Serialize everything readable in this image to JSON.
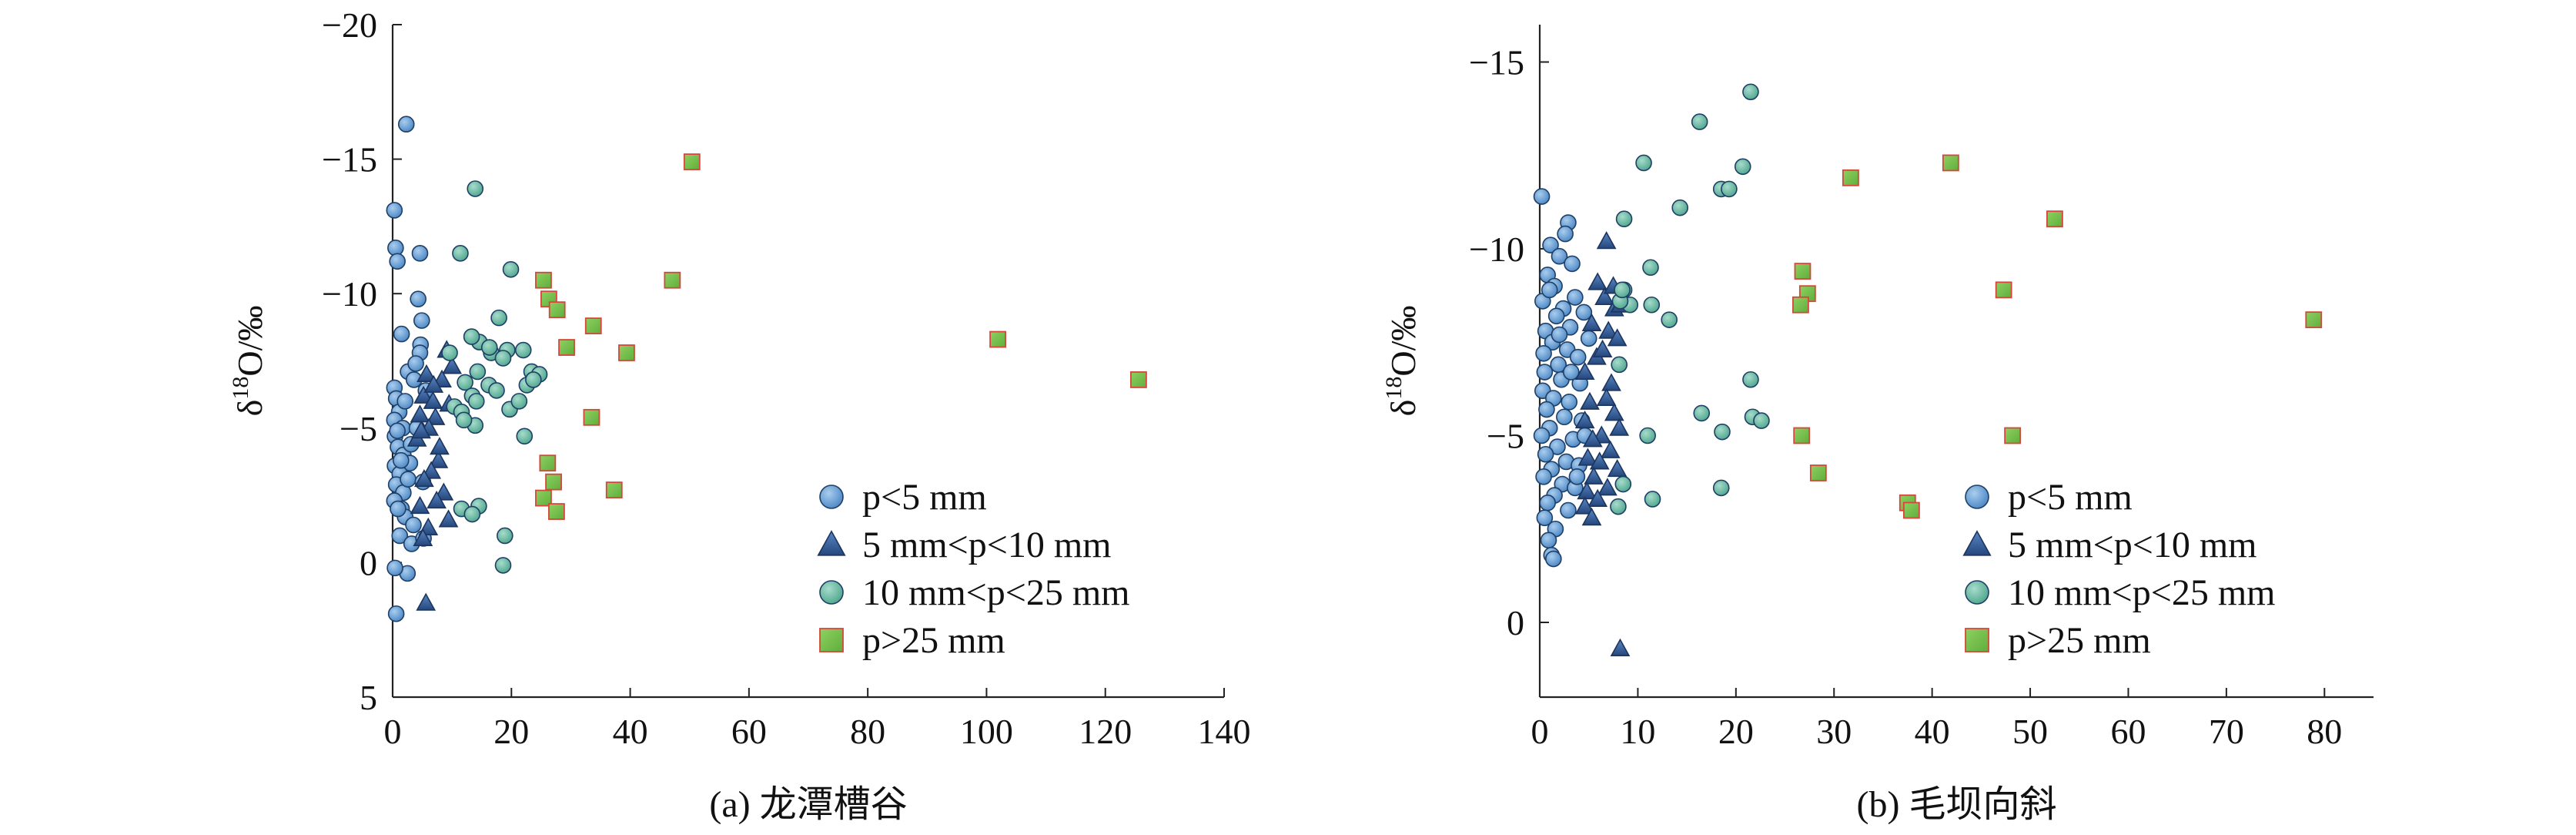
{
  "chart_data": [
    {
      "type": "scatter",
      "caption": "(a) 龙潭槽谷",
      "ylabel_base": "δ",
      "ylabel_sup": "18",
      "ylabel_rest": "O/‰",
      "xlim": [
        0,
        140
      ],
      "ylim": [
        5,
        -20
      ],
      "xticks": [
        0,
        20,
        40,
        60,
        80,
        100,
        120,
        140
      ],
      "yticks": [
        -20,
        -15,
        -10,
        -5,
        0,
        5
      ],
      "xtick_labels": [
        "0",
        "20",
        "40",
        "60",
        "80",
        "100",
        "120",
        "140"
      ],
      "ytick_labels": [
        "−20",
        "−15",
        "−10",
        "−5",
        "0",
        "5"
      ],
      "legend_position": "right",
      "series": [
        {
          "name": "p<5 mm",
          "marker": "circle",
          "color": "#5b9bd5",
          "points": [
            [
              0.3,
              -13.1
            ],
            [
              0.5,
              -11.7
            ],
            [
              0.8,
              -11.2
            ],
            [
              2.3,
              -16.3
            ],
            [
              1.5,
              -8.5
            ],
            [
              4.6,
              -11.5
            ],
            [
              4.3,
              -9.8
            ],
            [
              4.9,
              -9.0
            ],
            [
              4.7,
              -8.1
            ],
            [
              2.6,
              -7.1
            ],
            [
              0.3,
              -6.5
            ],
            [
              0.6,
              -6.1
            ],
            [
              1.1,
              -5.6
            ],
            [
              0.3,
              -5.3
            ],
            [
              1.7,
              -5.0
            ],
            [
              0.4,
              -4.7
            ],
            [
              0.9,
              -4.3
            ],
            [
              1.8,
              -4.0
            ],
            [
              2.9,
              -3.7
            ],
            [
              0.4,
              -3.6
            ],
            [
              1.2,
              -3.3
            ],
            [
              0.6,
              -2.9
            ],
            [
              1.8,
              -2.6
            ],
            [
              0.3,
              -2.3
            ],
            [
              1.5,
              -2.0
            ],
            [
              2.1,
              -1.7
            ],
            [
              3.5,
              -1.4
            ],
            [
              1.2,
              -1.0
            ],
            [
              3.2,
              -0.7
            ],
            [
              5.2,
              -0.9
            ],
            [
              2.5,
              0.4
            ],
            [
              0.4,
              0.2
            ],
            [
              0.6,
              1.9
            ],
            [
              3.1,
              -4.4
            ],
            [
              4.1,
              -5.0
            ],
            [
              5.6,
              -6.4
            ],
            [
              3.6,
              -6.8
            ],
            [
              2.1,
              -6.0
            ],
            [
              4.6,
              -7.8
            ],
            [
              3.9,
              -7.4
            ],
            [
              0.8,
              -4.9
            ],
            [
              1.4,
              -3.8
            ],
            [
              2.6,
              -3.1
            ],
            [
              0.9,
              -2.0
            ],
            [
              5.1,
              -3.0
            ]
          ]
        },
        {
          "name": "5 mm<p<10 mm",
          "marker": "triangle",
          "color": "#2e5a9a",
          "points": [
            [
              9.1,
              -7.9
            ],
            [
              10.0,
              -7.3
            ],
            [
              5.7,
              -7.0
            ],
            [
              8.3,
              -6.8
            ],
            [
              5.2,
              -6.2
            ],
            [
              6.8,
              -6.0
            ],
            [
              9.5,
              -5.9
            ],
            [
              4.6,
              -5.5
            ],
            [
              7.2,
              -5.4
            ],
            [
              6.1,
              -5.0
            ],
            [
              4.1,
              -4.6
            ],
            [
              7.7,
              -3.8
            ],
            [
              6.5,
              -3.4
            ],
            [
              5.3,
              -3.1
            ],
            [
              8.6,
              -2.6
            ],
            [
              7.4,
              -2.3
            ],
            [
              4.6,
              -2.1
            ],
            [
              9.4,
              -1.6
            ],
            [
              6.0,
              -1.3
            ],
            [
              5.1,
              -0.9
            ],
            [
              5.6,
              1.5
            ],
            [
              7.9,
              -4.3
            ],
            [
              4.8,
              -4.9
            ],
            [
              6.9,
              -6.6
            ]
          ]
        },
        {
          "name": "10 mm<p<25 mm",
          "marker": "circle",
          "color": "#5ab7a0",
          "points": [
            [
              13.9,
              -13.9
            ],
            [
              11.4,
              -11.5
            ],
            [
              19.9,
              -10.9
            ],
            [
              17.9,
              -9.1
            ],
            [
              14.6,
              -8.2
            ],
            [
              13.3,
              -8.4
            ],
            [
              16.6,
              -7.8
            ],
            [
              19.3,
              -7.9
            ],
            [
              22.0,
              -7.9
            ],
            [
              18.6,
              -7.6
            ],
            [
              14.3,
              -7.1
            ],
            [
              23.4,
              -7.1
            ],
            [
              24.7,
              -7.0
            ],
            [
              12.2,
              -6.7
            ],
            [
              16.2,
              -6.6
            ],
            [
              17.5,
              -6.4
            ],
            [
              13.4,
              -6.2
            ],
            [
              14.1,
              -6.0
            ],
            [
              22.6,
              -6.6
            ],
            [
              10.4,
              -5.8
            ],
            [
              19.7,
              -5.7
            ],
            [
              13.9,
              -5.1
            ],
            [
              22.2,
              -4.7
            ],
            [
              11.6,
              -5.6
            ],
            [
              14.5,
              -2.1
            ],
            [
              11.6,
              -2.0
            ],
            [
              13.4,
              -1.8
            ],
            [
              18.9,
              -1.0
            ],
            [
              18.6,
              0.1
            ],
            [
              9.6,
              -7.8
            ],
            [
              12.0,
              -5.3
            ],
            [
              16.3,
              -8.0
            ],
            [
              21.3,
              -6.0
            ],
            [
              23.7,
              -6.8
            ]
          ]
        },
        {
          "name": "p>25 mm",
          "marker": "square",
          "color": "#6fbf4a",
          "points": [
            [
              50.4,
              -14.9
            ],
            [
              25.4,
              -10.5
            ],
            [
              47.1,
              -10.5
            ],
            [
              26.3,
              -9.8
            ],
            [
              27.7,
              -9.4
            ],
            [
              33.8,
              -8.8
            ],
            [
              29.3,
              -8.0
            ],
            [
              39.4,
              -7.8
            ],
            [
              101.9,
              -8.3
            ],
            [
              125.6,
              -6.8
            ],
            [
              33.5,
              -5.4
            ],
            [
              26.1,
              -3.7
            ],
            [
              27.1,
              -3.0
            ],
            [
              37.3,
              -2.7
            ],
            [
              25.4,
              -2.4
            ],
            [
              27.6,
              -1.9
            ]
          ]
        }
      ]
    },
    {
      "type": "scatter",
      "caption": "(b) 毛坝向斜",
      "ylabel_base": "δ",
      "ylabel_sup": "18",
      "ylabel_rest": "O/‰",
      "xlim": [
        0,
        85
      ],
      "ylim": [
        2,
        -16
      ],
      "xticks": [
        0,
        10,
        20,
        30,
        40,
        50,
        60,
        70,
        80
      ],
      "yticks": [
        -15,
        -10,
        -5,
        0
      ],
      "xtick_labels": [
        "0",
        "10",
        "20",
        "30",
        "40",
        "50",
        "60",
        "70",
        "80"
      ],
      "ytick_labels": [
        "−15",
        "−10",
        "−5",
        "0"
      ],
      "legend_position": "right",
      "series": [
        {
          "name": "p<5 mm",
          "marker": "circle",
          "color": "#5b9bd5",
          "points": [
            [
              0.2,
              -11.4
            ],
            [
              2.9,
              -10.7
            ],
            [
              2.6,
              -10.4
            ],
            [
              1.1,
              -10.1
            ],
            [
              2.0,
              -9.8
            ],
            [
              3.3,
              -9.6
            ],
            [
              0.8,
              -9.3
            ],
            [
              1.5,
              -9.0
            ],
            [
              3.6,
              -8.7
            ],
            [
              0.3,
              -8.6
            ],
            [
              2.4,
              -8.4
            ],
            [
              4.5,
              -8.3
            ],
            [
              1.7,
              -8.2
            ],
            [
              3.1,
              -7.9
            ],
            [
              0.6,
              -7.8
            ],
            [
              5.0,
              -7.6
            ],
            [
              1.3,
              -7.5
            ],
            [
              2.8,
              -7.3
            ],
            [
              0.4,
              -7.2
            ],
            [
              3.9,
              -7.1
            ],
            [
              1.9,
              -6.9
            ],
            [
              0.5,
              -6.7
            ],
            [
              2.2,
              -6.5
            ],
            [
              4.1,
              -6.4
            ],
            [
              0.3,
              -6.2
            ],
            [
              1.4,
              -6.0
            ],
            [
              3.0,
              -5.9
            ],
            [
              0.7,
              -5.7
            ],
            [
              2.5,
              -5.5
            ],
            [
              4.3,
              -5.4
            ],
            [
              1.0,
              -5.2
            ],
            [
              0.2,
              -5.0
            ],
            [
              3.4,
              -4.9
            ],
            [
              1.8,
              -4.7
            ],
            [
              0.6,
              -4.5
            ],
            [
              2.7,
              -4.3
            ],
            [
              4.0,
              -4.2
            ],
            [
              1.2,
              -4.1
            ],
            [
              0.4,
              -3.9
            ],
            [
              2.3,
              -3.7
            ],
            [
              3.6,
              -3.6
            ],
            [
              1.5,
              -3.4
            ],
            [
              0.8,
              -3.2
            ],
            [
              2.9,
              -3.0
            ],
            [
              0.5,
              -2.8
            ],
            [
              1.6,
              -2.5
            ],
            [
              0.9,
              -2.2
            ],
            [
              1.2,
              -1.8
            ],
            [
              1.4,
              -1.7
            ],
            [
              3.8,
              -3.9
            ],
            [
              4.6,
              -5.0
            ],
            [
              3.2,
              -6.7
            ],
            [
              2.0,
              -7.7
            ],
            [
              1.0,
              -8.9
            ]
          ]
        },
        {
          "name": "5 mm<p<10 mm",
          "marker": "triangle",
          "color": "#2e5a9a",
          "points": [
            [
              6.8,
              -10.2
            ],
            [
              5.9,
              -9.1
            ],
            [
              6.6,
              -8.7
            ],
            [
              7.6,
              -8.4
            ],
            [
              8.2,
              -8.5
            ],
            [
              5.3,
              -8.0
            ],
            [
              7.0,
              -7.8
            ],
            [
              7.9,
              -7.6
            ],
            [
              5.8,
              -7.1
            ],
            [
              4.6,
              -6.7
            ],
            [
              7.3,
              -6.4
            ],
            [
              6.8,
              -6.0
            ],
            [
              5.1,
              -5.9
            ],
            [
              7.6,
              -5.6
            ],
            [
              4.6,
              -5.4
            ],
            [
              8.1,
              -5.2
            ],
            [
              6.3,
              -5.0
            ],
            [
              5.4,
              -4.9
            ],
            [
              7.2,
              -4.6
            ],
            [
              4.9,
              -4.4
            ],
            [
              6.1,
              -4.3
            ],
            [
              7.9,
              -4.1
            ],
            [
              5.5,
              -3.9
            ],
            [
              6.9,
              -3.6
            ],
            [
              4.8,
              -3.5
            ],
            [
              5.9,
              -3.3
            ],
            [
              4.6,
              -3.1
            ],
            [
              5.3,
              -2.8
            ],
            [
              8.2,
              0.7
            ],
            [
              6.4,
              -7.3
            ],
            [
              7.5,
              -9.0
            ]
          ]
        },
        {
          "name": "10 mm<p<25 mm",
          "marker": "circle",
          "color": "#5ab7a0",
          "points": [
            [
              21.5,
              -14.2
            ],
            [
              16.3,
              -13.4
            ],
            [
              10.6,
              -12.3
            ],
            [
              20.7,
              -12.2
            ],
            [
              14.3,
              -11.1
            ],
            [
              18.5,
              -11.6
            ],
            [
              19.3,
              -11.6
            ],
            [
              8.6,
              -10.8
            ],
            [
              11.3,
              -9.5
            ],
            [
              8.6,
              -8.9
            ],
            [
              9.2,
              -8.5
            ],
            [
              11.4,
              -8.5
            ],
            [
              13.2,
              -8.1
            ],
            [
              8.2,
              -8.6
            ],
            [
              8.4,
              -8.9
            ],
            [
              21.5,
              -6.5
            ],
            [
              18.6,
              -5.1
            ],
            [
              21.7,
              -5.5
            ],
            [
              16.5,
              -5.6
            ],
            [
              22.6,
              -5.4
            ],
            [
              8.5,
              -3.7
            ],
            [
              8.0,
              -3.1
            ],
            [
              11.5,
              -3.3
            ],
            [
              18.5,
              -3.6
            ],
            [
              8.1,
              -6.9
            ],
            [
              11.0,
              -5.0
            ]
          ]
        },
        {
          "name": "p>25 mm",
          "marker": "square",
          "color": "#6fbf4a",
          "points": [
            [
              41.9,
              -12.3
            ],
            [
              31.7,
              -11.9
            ],
            [
              52.5,
              -10.8
            ],
            [
              26.8,
              -9.4
            ],
            [
              47.3,
              -8.9
            ],
            [
              27.3,
              -8.8
            ],
            [
              26.6,
              -8.5
            ],
            [
              78.9,
              -8.1
            ],
            [
              26.7,
              -5.0
            ],
            [
              48.2,
              -5.0
            ],
            [
              28.4,
              -4.0
            ],
            [
              37.5,
              -3.2
            ],
            [
              37.9,
              -3.0
            ]
          ]
        }
      ]
    }
  ]
}
